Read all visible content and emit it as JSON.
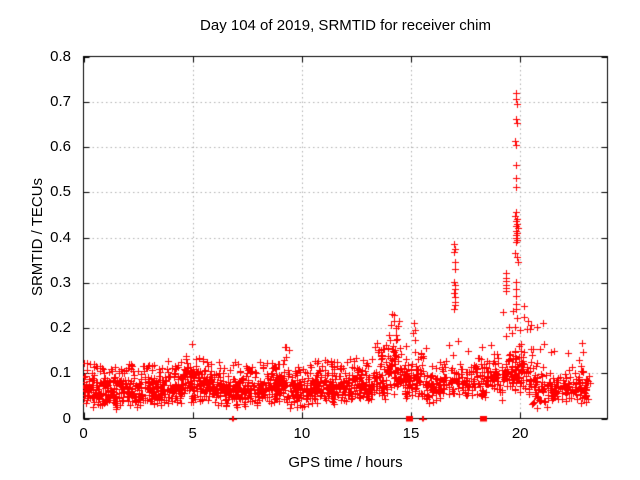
{
  "chart_data": {
    "type": "scatter",
    "title": "Day 104 of 2019, SRMTID for receiver chim",
    "xlabel": "GPS time / hours",
    "ylabel": "SRMTID / TECUs",
    "xlim": [
      0,
      24
    ],
    "ylim": [
      0,
      0.8
    ],
    "xticks": [
      0,
      5,
      10,
      15,
      20
    ],
    "x_tick_labels": [
      "0",
      "5",
      "10",
      "15",
      "20"
    ],
    "yticks": [
      0,
      0.1,
      0.2,
      0.3,
      0.4,
      0.5,
      0.6,
      0.7,
      0.8
    ],
    "y_tick_labels": [
      "0",
      "0.1",
      "0.2",
      "0.3",
      "0.4",
      "0.5",
      "0.6",
      "0.7",
      "0.8"
    ],
    "grid": "dotted-major",
    "legend": "none",
    "marker_color": "#ff0000",
    "grid_color": "#b0b0b0",
    "axis_color": "#000000",
    "background": "#ffffff",
    "seed": 20190104,
    "band_segments_format": [
      "x_start",
      "x_end",
      "count",
      "y_low",
      "y_mid",
      "y_high"
    ],
    "series": [
      {
        "name": "srmtid",
        "marker": "plus",
        "band_segments": [
          [
            0.0,
            0.6,
            60,
            0.02,
            0.11,
            0.13
          ],
          [
            0.6,
            1.6,
            100,
            0.015,
            0.1,
            0.12
          ],
          [
            1.6,
            2.6,
            100,
            0.02,
            0.1,
            0.12
          ],
          [
            2.6,
            3.6,
            100,
            0.02,
            0.105,
            0.12
          ],
          [
            3.6,
            4.5,
            90,
            0.025,
            0.11,
            0.13
          ],
          [
            4.5,
            5.3,
            85,
            0.03,
            0.13,
            0.17
          ],
          [
            5.3,
            6.0,
            70,
            0.03,
            0.115,
            0.14
          ],
          [
            6.0,
            7.0,
            95,
            0.02,
            0.1,
            0.13
          ],
          [
            7.0,
            8.0,
            95,
            0.02,
            0.1,
            0.12
          ],
          [
            8.0,
            8.8,
            80,
            0.025,
            0.11,
            0.13
          ],
          [
            8.8,
            9.4,
            60,
            0.03,
            0.12,
            0.16
          ],
          [
            9.4,
            10.4,
            95,
            0.02,
            0.1,
            0.12
          ],
          [
            10.4,
            11.4,
            95,
            0.025,
            0.105,
            0.13
          ],
          [
            11.4,
            12.4,
            95,
            0.03,
            0.11,
            0.13
          ],
          [
            12.4,
            13.2,
            80,
            0.03,
            0.11,
            0.14
          ],
          [
            13.2,
            13.9,
            65,
            0.04,
            0.13,
            0.17
          ],
          [
            13.9,
            14.5,
            60,
            0.05,
            0.17,
            0.22
          ],
          [
            14.5,
            15.0,
            45,
            0.04,
            0.13,
            0.19
          ],
          [
            15.0,
            15.5,
            40,
            0.04,
            0.14,
            0.2
          ],
          [
            15.5,
            16.3,
            60,
            0.03,
            0.11,
            0.16
          ],
          [
            16.3,
            17.3,
            70,
            0.04,
            0.13,
            0.18
          ],
          [
            17.3,
            18.3,
            70,
            0.04,
            0.13,
            0.18
          ],
          [
            18.3,
            19.2,
            65,
            0.04,
            0.14,
            0.21
          ],
          [
            19.2,
            19.7,
            40,
            0.05,
            0.15,
            0.24
          ],
          [
            19.7,
            20.2,
            55,
            0.04,
            0.17,
            0.26
          ],
          [
            20.2,
            20.8,
            50,
            0.02,
            0.14,
            0.21
          ],
          [
            20.8,
            21.6,
            55,
            0.02,
            0.11,
            0.17
          ],
          [
            21.6,
            22.4,
            50,
            0.025,
            0.1,
            0.15
          ],
          [
            22.4,
            23.1,
            55,
            0.03,
            0.1,
            0.13
          ]
        ],
        "points": [
          [
            16.97,
            0.386
          ],
          [
            17.02,
            0.375
          ],
          [
            16.99,
            0.368
          ],
          [
            17.01,
            0.345
          ],
          [
            17.03,
            0.331
          ],
          [
            16.98,
            0.302
          ],
          [
            17.0,
            0.295
          ],
          [
            17.02,
            0.287
          ],
          [
            16.99,
            0.278
          ],
          [
            17.01,
            0.268
          ],
          [
            17.0,
            0.258
          ],
          [
            17.02,
            0.25
          ],
          [
            16.98,
            0.243
          ],
          [
            19.82,
            0.72
          ],
          [
            19.8,
            0.705
          ],
          [
            19.84,
            0.695
          ],
          [
            19.79,
            0.662
          ],
          [
            19.85,
            0.652
          ],
          [
            19.78,
            0.613
          ],
          [
            19.83,
            0.605
          ],
          [
            19.8,
            0.561
          ],
          [
            19.81,
            0.532
          ],
          [
            19.8,
            0.512
          ],
          [
            19.83,
            0.456
          ],
          [
            19.78,
            0.448
          ],
          [
            19.86,
            0.441
          ],
          [
            19.8,
            0.436
          ],
          [
            19.84,
            0.43
          ],
          [
            19.79,
            0.425
          ],
          [
            19.88,
            0.421
          ],
          [
            19.82,
            0.415
          ],
          [
            19.85,
            0.41
          ],
          [
            19.8,
            0.405
          ],
          [
            19.83,
            0.4
          ],
          [
            19.87,
            0.395
          ],
          [
            19.81,
            0.39
          ],
          [
            19.75,
            0.366
          ],
          [
            19.86,
            0.357
          ],
          [
            19.92,
            0.346
          ],
          [
            19.8,
            0.302
          ],
          [
            19.82,
            0.286
          ],
          [
            19.79,
            0.271
          ],
          [
            19.83,
            0.253
          ],
          [
            19.81,
            0.241
          ],
          [
            19.33,
            0.321
          ],
          [
            19.36,
            0.311
          ],
          [
            19.34,
            0.304
          ],
          [
            19.37,
            0.296
          ],
          [
            19.35,
            0.289
          ],
          [
            19.33,
            0.281
          ],
          [
            14.15,
            0.232
          ],
          [
            14.24,
            0.228
          ],
          [
            14.2,
            0.216
          ],
          [
            14.1,
            0.206
          ],
          [
            14.3,
            0.2
          ],
          [
            15.12,
            0.21
          ],
          [
            15.18,
            0.196
          ],
          [
            15.08,
            0.188
          ],
          [
            20.35,
            0.215
          ],
          [
            20.5,
            0.206
          ],
          [
            20.3,
            0.198
          ],
          [
            21.05,
            0.21
          ],
          [
            22.82,
            0.166
          ],
          [
            22.88,
            0.146
          ],
          [
            23.15,
            0.095
          ],
          [
            23.2,
            0.078
          ],
          [
            0.3,
            0.12
          ],
          [
            12.2,
            0.131
          ],
          [
            6.78,
            0.0
          ],
          [
            6.83,
            0.0
          ],
          [
            15.52,
            0.0
          ],
          [
            15.57,
            0.0
          ]
        ]
      },
      {
        "name": "zero-flag-squares",
        "marker": "filled-square",
        "points": [
          [
            14.9,
            0.0
          ],
          [
            18.3,
            0.0
          ]
        ]
      }
    ]
  }
}
